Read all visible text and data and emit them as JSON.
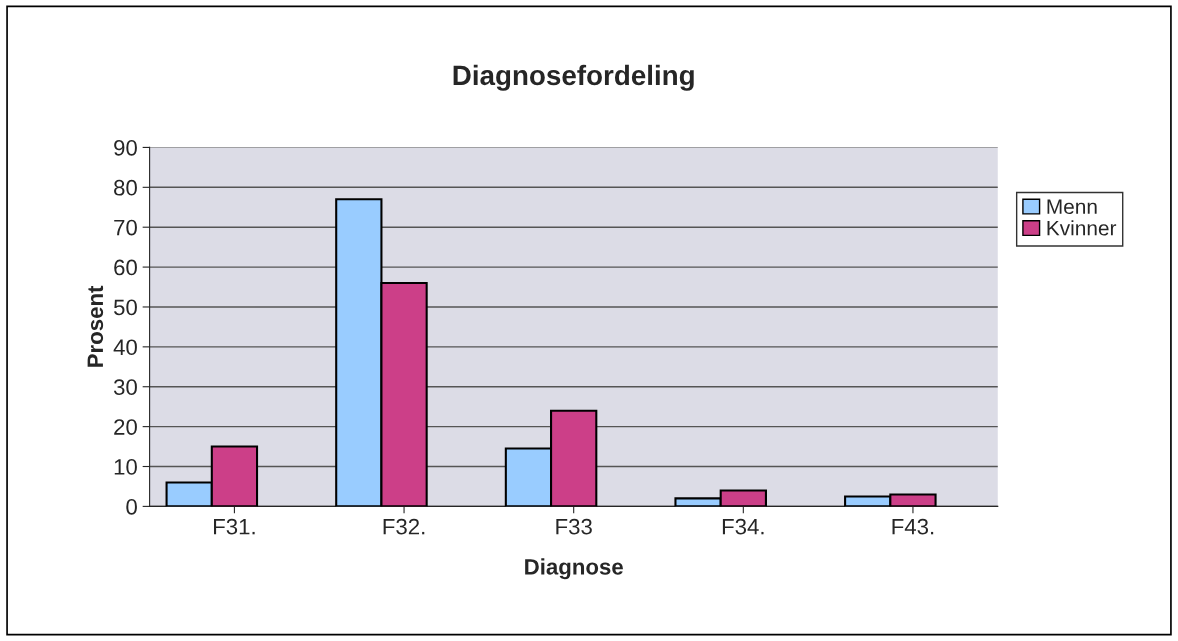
{
  "chart_data": {
    "type": "bar",
    "title": "Diagnosefordeling",
    "xlabel": "Diagnose",
    "ylabel": "Prosent",
    "categories": [
      "F31.",
      "F32.",
      "F33",
      "F34.",
      "F43."
    ],
    "series": [
      {
        "name": "Menn",
        "color": "#99ccff",
        "values": [
          6,
          77,
          14.5,
          2,
          2.5
        ]
      },
      {
        "name": "Kvinner",
        "color": "#cc3f88",
        "values": [
          15,
          56,
          24,
          4,
          3
        ]
      },
      {
        "values": [
          null,
          null,
          null,
          null,
          null
        ]
      }
    ],
    "ylim": [
      0,
      90
    ],
    "yticks": [
      0,
      10,
      20,
      30,
      40,
      50,
      60,
      70,
      80,
      90
    ],
    "grid": "y",
    "legend": "right"
  }
}
